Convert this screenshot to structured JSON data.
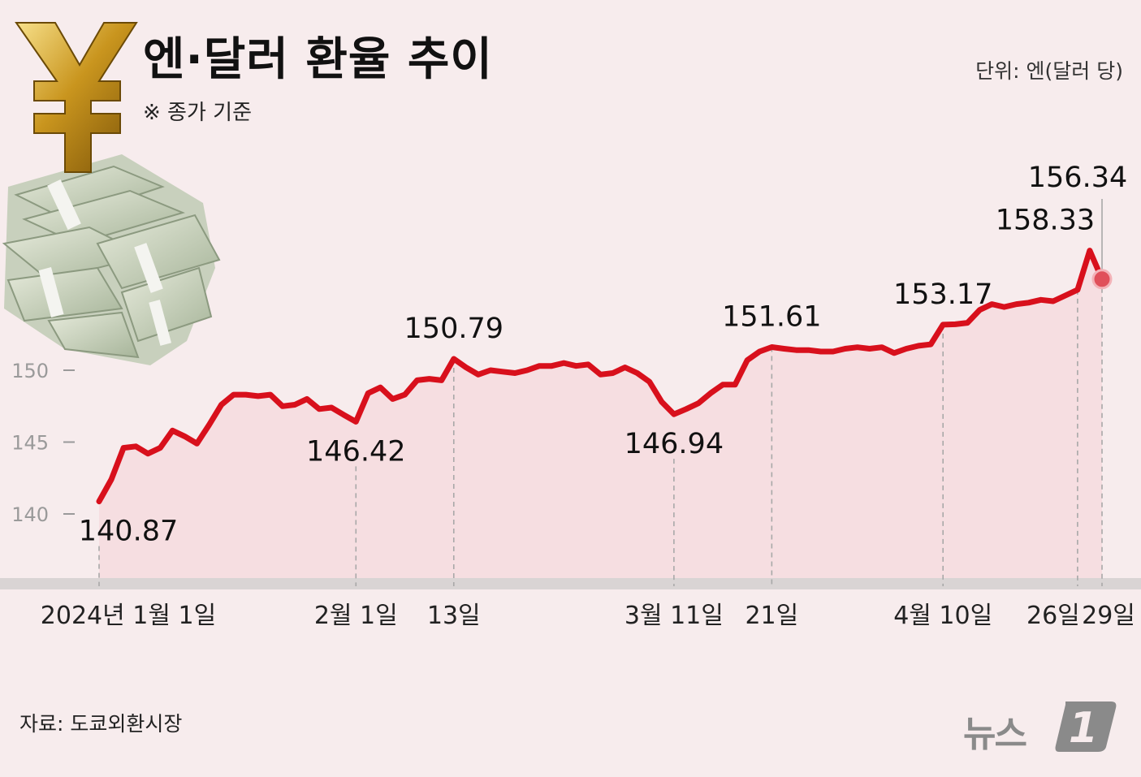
{
  "header": {
    "title": "엔·달러 환율 추이",
    "subtitle": "※ 종가 기준",
    "unit": "단위: 엔(달러 당)"
  },
  "footer": {
    "source": "자료: 도쿄외환시장",
    "logo_text": "뉴스",
    "logo_mark": "1"
  },
  "colors": {
    "line": "#d8101c",
    "fill": "#f6d9dc",
    "background": "#f7eced",
    "axis_band": "#d9d4d4"
  },
  "icons": [
    "yen-sign-icon",
    "money-stack-icon"
  ],
  "chart_data": {
    "type": "line",
    "ylim": [
      140,
      158.33
    ],
    "yticks": [
      140,
      145,
      150
    ],
    "ytick_labels": [
      "140",
      "145",
      "150"
    ],
    "x_tick_labels": [
      {
        "label": "2024년 1월 1일",
        "index": 0
      },
      {
        "label": "2월 1일",
        "index": 21
      },
      {
        "label": "13일",
        "index": 29
      },
      {
        "label": "3월 11일",
        "index": 47
      },
      {
        "label": "21일",
        "index": 55
      },
      {
        "label": "4월 10일",
        "index": 69
      },
      {
        "label": "26일",
        "index": 80
      },
      {
        "label": "29일",
        "index": 82
      }
    ],
    "series": [
      {
        "values": [
          140.87,
          142.4,
          144.6,
          144.7,
          144.2,
          144.6,
          145.8,
          145.4,
          144.9,
          146.2,
          147.6,
          148.3,
          148.3,
          148.2,
          148.3,
          147.5,
          147.6,
          148.0,
          147.3,
          147.4,
          146.9,
          146.42,
          148.4,
          148.8,
          148.0,
          148.3,
          149.3,
          149.4,
          149.3,
          150.79,
          150.2,
          149.7,
          150.0,
          149.9,
          149.8,
          150.0,
          150.3,
          150.3,
          150.5,
          150.3,
          150.4,
          149.7,
          149.8,
          150.2,
          149.8,
          149.2,
          147.8,
          146.94,
          147.3,
          147.7,
          148.4,
          149.0,
          149.0,
          150.7,
          151.3,
          151.61,
          151.5,
          151.4,
          151.4,
          151.3,
          151.3,
          151.5,
          151.6,
          151.5,
          151.6,
          151.2,
          151.5,
          151.7,
          151.8,
          153.17,
          153.2,
          153.3,
          154.2,
          154.6,
          154.4,
          154.6,
          154.7,
          154.9,
          154.8,
          155.2,
          155.6,
          158.33,
          156.34
        ]
      }
    ],
    "point_labels": [
      {
        "index": 0,
        "text": "140.87",
        "pos": "below"
      },
      {
        "index": 21,
        "text": "146.42",
        "pos": "below"
      },
      {
        "index": 29,
        "text": "150.79",
        "pos": "above"
      },
      {
        "index": 47,
        "text": "146.94",
        "pos": "below"
      },
      {
        "index": 55,
        "text": "151.61",
        "pos": "above"
      },
      {
        "index": 69,
        "text": "153.17",
        "pos": "above"
      },
      {
        "index": 81,
        "text": "158.33",
        "pos": "above-left"
      },
      {
        "index": 82,
        "text": "156.34",
        "pos": "callout"
      }
    ],
    "grid": false,
    "legend": "none"
  }
}
